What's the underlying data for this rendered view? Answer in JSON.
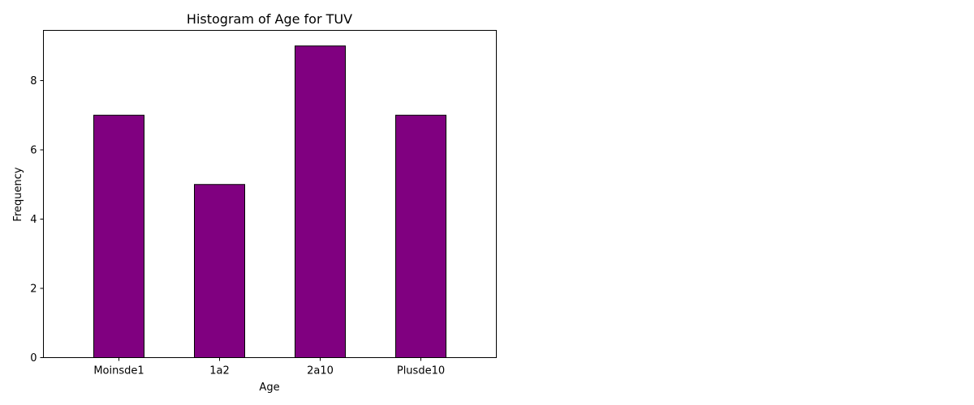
{
  "chart_data": {
    "type": "bar",
    "title": "Histogram of Age for TUV",
    "xlabel": "Age",
    "ylabel": "Frequency",
    "categories": [
      "Moinsde1",
      "1a2",
      "2a10",
      "Plusde10"
    ],
    "values": [
      7,
      5,
      9,
      7
    ],
    "ylim": [
      0,
      9.45
    ],
    "yticks": [
      0,
      2,
      4,
      6,
      8
    ],
    "grid": false,
    "colors": {
      "bar_fill": "#800080",
      "bar_edge": "#000000",
      "axes": "#000000"
    }
  }
}
